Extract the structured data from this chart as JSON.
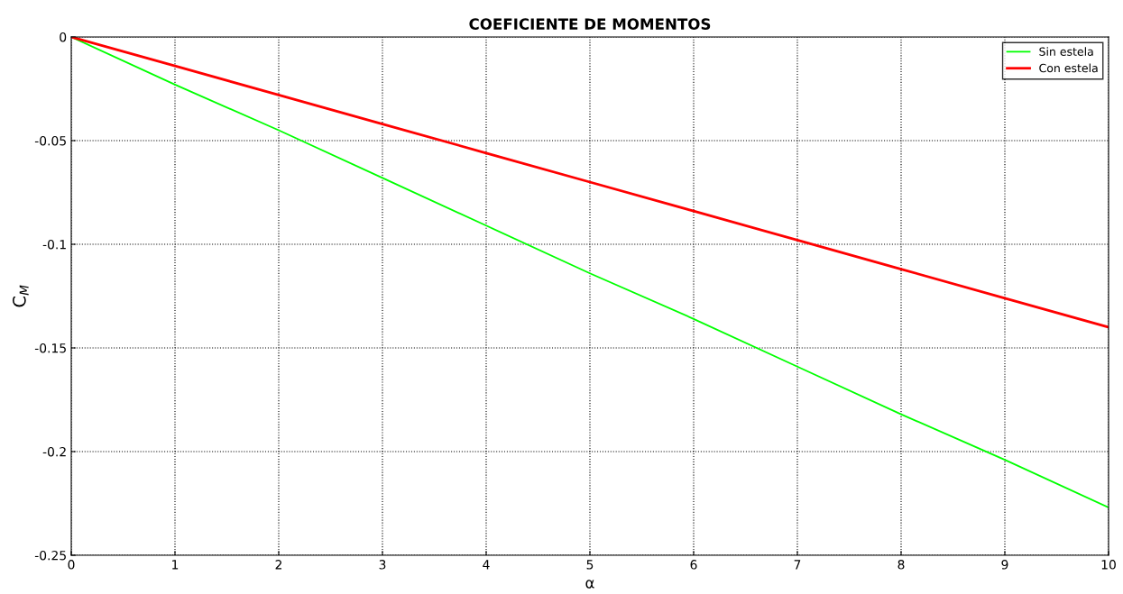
{
  "chart_data": {
    "type": "line",
    "title": "COEFICIENTE DE MOMENTOS",
    "xlabel": "α",
    "ylabel": "C$_{M}$",
    "x": [
      0,
      1,
      2,
      3,
      4,
      5,
      6,
      7,
      8,
      9,
      10
    ],
    "series": [
      {
        "name": "Sin estela",
        "color": "#00ff00",
        "values": [
          0,
          -0.023,
          -0.045,
          -0.068,
          -0.091,
          -0.114,
          -0.136,
          -0.159,
          -0.182,
          -0.204,
          -0.227
        ]
      },
      {
        "name": "Con estela",
        "color": "#ff0000",
        "values": [
          0,
          -0.014,
          -0.028,
          -0.042,
          -0.056,
          -0.07,
          -0.084,
          -0.098,
          -0.112,
          -0.126,
          -0.14
        ]
      }
    ],
    "xlim": [
      0,
      10
    ],
    "ylim": [
      -0.25,
      0
    ],
    "xticks": [
      0,
      1,
      2,
      3,
      4,
      5,
      6,
      7,
      8,
      9,
      10
    ],
    "yticks": [
      -0.25,
      -0.2,
      -0.15,
      -0.1,
      -0.05,
      0
    ],
    "grid": true,
    "legend": "top right",
    "marker": "none",
    "line_style": "solid"
  }
}
